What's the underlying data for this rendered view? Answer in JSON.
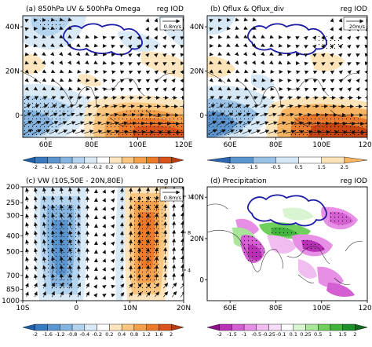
{
  "chart_data": [
    {
      "type": "heatmap",
      "panel": "a",
      "title": "(a) 850hPa UV & 500hPa Omega",
      "tag": "reg IOD",
      "ref_vector": "0.8m/s",
      "x_ticks": [
        "60E",
        "80E",
        "100E",
        "120E"
      ],
      "y_ticks": [
        "40N",
        "20N",
        "0"
      ],
      "xlim": [
        50,
        120
      ],
      "ylim": [
        -10,
        45
      ],
      "colorbar": [
        "-2",
        "-1.6",
        "-1.2",
        "-0.8",
        "-0.4",
        "-0.2",
        "0.2",
        "0.4",
        "0.8",
        "1.2",
        "1.6",
        "2"
      ]
    },
    {
      "type": "heatmap",
      "panel": "b",
      "title": "(b) Qflux & Qflux_div",
      "tag": "reg IOD",
      "ref_vector": "20m/s",
      "x_ticks": [
        "60E",
        "80E",
        "100E",
        "120E"
      ],
      "y_ticks": [
        "40N",
        "20N",
        "0"
      ],
      "xlim": [
        50,
        120
      ],
      "ylim": [
        -10,
        45
      ],
      "colorbar": [
        "-2.5",
        "-1.5",
        "-0.5",
        "0.5",
        "1.5",
        "2.5"
      ]
    },
    {
      "type": "heatmap",
      "panel": "c",
      "title": "(c) VW (10S,50E - 20N,80E)",
      "tag": "reg IOD",
      "ref_vector": "0.8m/s",
      "x_ticks": [
        "10S",
        "0",
        "10N",
        "20N"
      ],
      "y_ticks": [
        "200",
        "250",
        "300",
        "400",
        "500",
        "700",
        "850",
        "1000"
      ],
      "right_ticks": [
        "12",
        "8",
        "4"
      ],
      "xlim": [
        -10,
        20
      ],
      "ylim": [
        1000,
        200
      ],
      "colorbar": [
        "-2",
        "-1.6",
        "-1.2",
        "-0.8",
        "-0.4",
        "-0.2",
        "0.2",
        "0.4",
        "0.8",
        "1.2",
        "1.6",
        "2"
      ]
    },
    {
      "type": "heatmap",
      "panel": "d",
      "title": "(d) Precipitation",
      "tag": "reg IOD",
      "x_ticks": [
        "60E",
        "80E",
        "100E",
        "120E"
      ],
      "y_ticks": [
        "40N",
        "20N",
        "0"
      ],
      "xlim": [
        50,
        120
      ],
      "ylim": [
        -10,
        45
      ],
      "colorbar": [
        "-2",
        "-1.5",
        "-1",
        "-0.5",
        "-0.25",
        "-0.1",
        "0.1",
        "0.25",
        "0.5",
        "1",
        "1.5",
        "2"
      ]
    }
  ],
  "colors": {
    "cb12": [
      "#1f5fa8",
      "#3a7bc0",
      "#5b96d0",
      "#85b4e0",
      "#b3d3ee",
      "#d9e9f6",
      "#ffffff",
      "#fde6bf",
      "#fbc67f",
      "#f5a04a",
      "#ec7a2a",
      "#d9531a",
      "#b83b0e"
    ],
    "cb6": [
      "#2b66b0",
      "#5b96d0",
      "#99c2e6",
      "#d6e8f6",
      "#ffffff",
      "#fde3b8",
      "#f7b463",
      "#e97a2d",
      "#c8450f"
    ],
    "cbPrecip": [
      "#8e0e8c",
      "#b930b6",
      "#d45fd2",
      "#e68fe5",
      "#f1bdf0",
      "#f8dcf7",
      "#ffffff",
      "#d8f4d0",
      "#a9e59a",
      "#6fd05c",
      "#3fb33a",
      "#1f8f2a",
      "#0c6a19"
    ],
    "plateau": "#1a1aa6"
  }
}
